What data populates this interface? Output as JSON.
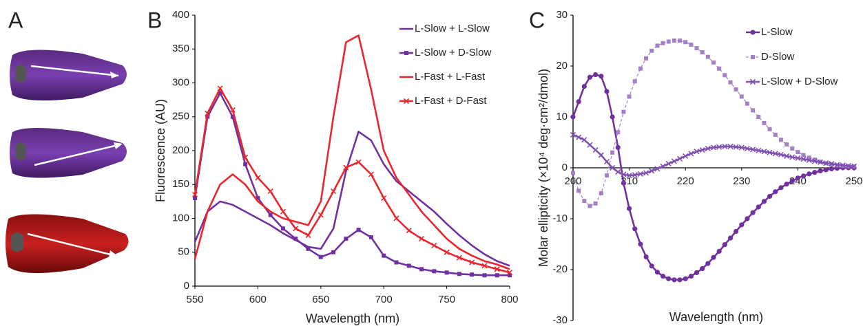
{
  "panel_labels": [
    "A",
    "B",
    "C"
  ],
  "chart_data": [
    {
      "type": "line",
      "xlabel": "Wavelength (nm)",
      "ylabel": "Fluorescence (AU)",
      "x": [
        550,
        560,
        570,
        580,
        590,
        600,
        610,
        620,
        630,
        640,
        650,
        660,
        670,
        680,
        690,
        700,
        710,
        720,
        730,
        740,
        750,
        760,
        770,
        780,
        790,
        800
      ],
      "series": [
        {
          "name": "L-Slow + L-Slow",
          "color": "#7030a0",
          "marker": "none",
          "dash": false,
          "values": [
            65,
            110,
            125,
            120,
            110,
            100,
            90,
            78,
            68,
            58,
            55,
            85,
            170,
            228,
            215,
            180,
            155,
            140,
            125,
            110,
            92,
            75,
            60,
            47,
            37,
            30
          ]
        },
        {
          "name": "L-Slow + D-Slow",
          "color": "#7030a0",
          "marker": "square",
          "dash": false,
          "values": [
            130,
            250,
            285,
            250,
            180,
            130,
            105,
            85,
            70,
            55,
            43,
            50,
            70,
            83,
            72,
            45,
            35,
            30,
            25,
            22,
            20,
            18,
            17,
            16,
            16,
            16
          ]
        },
        {
          "name": "L-Fast + L-Fast",
          "color": "#e8262c",
          "marker": "none",
          "dash": false,
          "values": [
            40,
            110,
            150,
            165,
            150,
            125,
            110,
            100,
            95,
            90,
            125,
            250,
            360,
            370,
            290,
            200,
            160,
            135,
            110,
            90,
            70,
            55,
            45,
            37,
            32,
            25
          ]
        },
        {
          "name": "L-Fast + D-Fast",
          "color": "#e8262c",
          "marker": "x",
          "dash": false,
          "values": [
            135,
            255,
            292,
            260,
            190,
            160,
            140,
            110,
            85,
            75,
            105,
            140,
            175,
            183,
            165,
            130,
            100,
            82,
            70,
            60,
            50,
            42,
            35,
            30,
            25,
            20
          ]
        }
      ],
      "xlim": [
        550,
        800
      ],
      "xticks": [
        550,
        600,
        650,
        700,
        750,
        800
      ],
      "ylim": [
        0,
        400
      ],
      "yticks": [
        0,
        50,
        100,
        150,
        200,
        250,
        300,
        350,
        400
      ],
      "grid": false,
      "legend": "upper right"
    },
    {
      "type": "line",
      "xlabel": "Wavelength (nm)",
      "ylabel": "Molar ellipticity (×10⁴ deg·cm²/dmol)",
      "x": [
        200,
        201,
        202,
        203,
        204,
        205,
        206,
        207,
        208,
        209,
        210,
        211,
        212,
        213,
        214,
        215,
        216,
        217,
        218,
        219,
        220,
        221,
        222,
        223,
        224,
        225,
        226,
        227,
        228,
        229,
        230,
        231,
        232,
        233,
        234,
        235,
        236,
        237,
        238,
        239,
        240,
        241,
        242,
        243,
        244,
        245,
        246,
        247,
        248,
        249,
        250
      ],
      "series": [
        {
          "name": "L-Slow",
          "color": "#7030a0",
          "marker": "circle",
          "dash": false,
          "values": [
            10,
            13,
            16,
            17.8,
            18.3,
            18,
            15,
            10,
            4,
            -3,
            -8,
            -12,
            -15,
            -17.5,
            -19.3,
            -20.5,
            -21.3,
            -21.8,
            -22,
            -22,
            -21.8,
            -21.3,
            -20.6,
            -19.8,
            -18.8,
            -17.6,
            -16.4,
            -15.1,
            -13.8,
            -12.5,
            -11.2,
            -10,
            -8.8,
            -7.7,
            -6.6,
            -5.6,
            -4.7,
            -3.9,
            -3.2,
            -2.6,
            -2,
            -1.6,
            -1.2,
            -0.9,
            -0.6,
            -0.4,
            -0.2,
            -0.1,
            0,
            0,
            0
          ]
        },
        {
          "name": "D-Slow",
          "color": "#a57fc8",
          "marker": "square",
          "dash": true,
          "values": [
            -1,
            -4.5,
            -6.5,
            -7.5,
            -7,
            -5,
            -1.5,
            3,
            7,
            11,
            14,
            17,
            19.5,
            21.5,
            23,
            24,
            24.5,
            24.8,
            25,
            25,
            24.7,
            24.2,
            23.5,
            22.7,
            21.8,
            20.7,
            19.5,
            18.2,
            16.8,
            15.4,
            14,
            12.6,
            11.3,
            10,
            8.8,
            7.6,
            6.5,
            5.5,
            4.6,
            3.8,
            3.1,
            2.5,
            2,
            1.6,
            1.2,
            0.9,
            0.7,
            0.5,
            0.4,
            0.3,
            0.3
          ]
        },
        {
          "name": "L-Slow + D-Slow",
          "color": "#8050b0",
          "marker": "x",
          "dash": false,
          "values": [
            6.5,
            6,
            5.5,
            4.5,
            3.5,
            2.5,
            1.2,
            0,
            -0.8,
            -1.3,
            -1.5,
            -1.4,
            -1.2,
            -1,
            -0.6,
            -0.2,
            0.3,
            0.8,
            1.3,
            1.8,
            2.3,
            2.8,
            3.2,
            3.5,
            3.8,
            4,
            4.1,
            4.2,
            4.2,
            4.1,
            4,
            3.8,
            3.6,
            3.4,
            3.2,
            3,
            2.8,
            2.6,
            2.3,
            2.1,
            1.9,
            1.7,
            1.5,
            1.3,
            1.1,
            0.9,
            0.8,
            0.6,
            0.5,
            0.4,
            0.3
          ]
        }
      ],
      "xlim": [
        200,
        250
      ],
      "xticks": [
        200,
        210,
        220,
        230,
        240,
        250
      ],
      "ylim": [
        -30,
        30
      ],
      "yticks": [
        -30,
        -20,
        -10,
        0,
        10,
        20,
        30
      ],
      "grid": false,
      "legend": "upper right"
    }
  ]
}
